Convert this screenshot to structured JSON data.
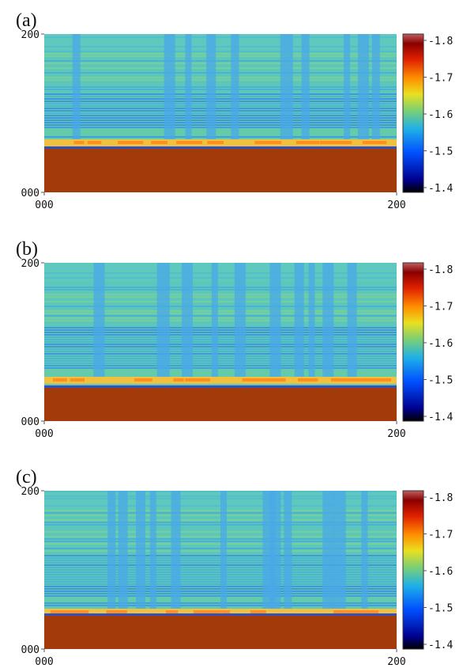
{
  "chart_data": [
    {
      "type": "heatmap",
      "panel_label": "(a)",
      "x_ticks": [
        "000",
        "200"
      ],
      "y_ticks": [
        "200",
        "000"
      ],
      "xlim": [
        0,
        200
      ],
      "ylim": [
        0,
        200
      ],
      "colorbar": {
        "ticks": [
          "-1.8",
          "-1.7",
          "-1.6",
          "-1.5",
          "-1.4"
        ],
        "range": [
          -1.4,
          -1.8
        ]
      },
      "substrate_top": 55,
      "band_y": 63,
      "streaks": [
        16,
        68,
        80,
        92,
        106,
        134,
        146,
        170,
        178,
        186
      ]
    },
    {
      "type": "heatmap",
      "panel_label": "(b)",
      "x_ticks": [
        "000",
        "200"
      ],
      "y_ticks": [
        "200",
        "000"
      ],
      "xlim": [
        0,
        200
      ],
      "ylim": [
        0,
        200
      ],
      "colorbar": {
        "ticks": [
          "-1.8",
          "-1.7",
          "-1.6",
          "-1.5",
          "-1.4"
        ],
        "range": [
          -1.4,
          -1.8
        ]
      },
      "substrate_top": 42,
      "band_y": 52,
      "streaks": [
        28,
        64,
        78,
        95,
        108,
        128,
        142,
        150,
        158,
        172
      ]
    },
    {
      "type": "heatmap",
      "panel_label": "(c)",
      "x_ticks": [
        "000",
        "200"
      ],
      "y_ticks": [
        "200",
        "000"
      ],
      "xlim": [
        0,
        200
      ],
      "ylim": [
        0,
        200
      ],
      "colorbar": {
        "ticks": [
          "-1.8",
          "-1.7",
          "-1.6",
          "-1.5",
          "-1.4"
        ],
        "range": [
          -1.4,
          -1.8
        ]
      },
      "substrate_top": 42,
      "band_y": 47,
      "streaks": [
        36,
        42,
        52,
        60,
        72,
        100,
        124,
        128,
        136,
        158,
        164,
        180
      ]
    }
  ],
  "colors": {
    "substrate": "#a33a0a",
    "background": "#ffffff"
  }
}
